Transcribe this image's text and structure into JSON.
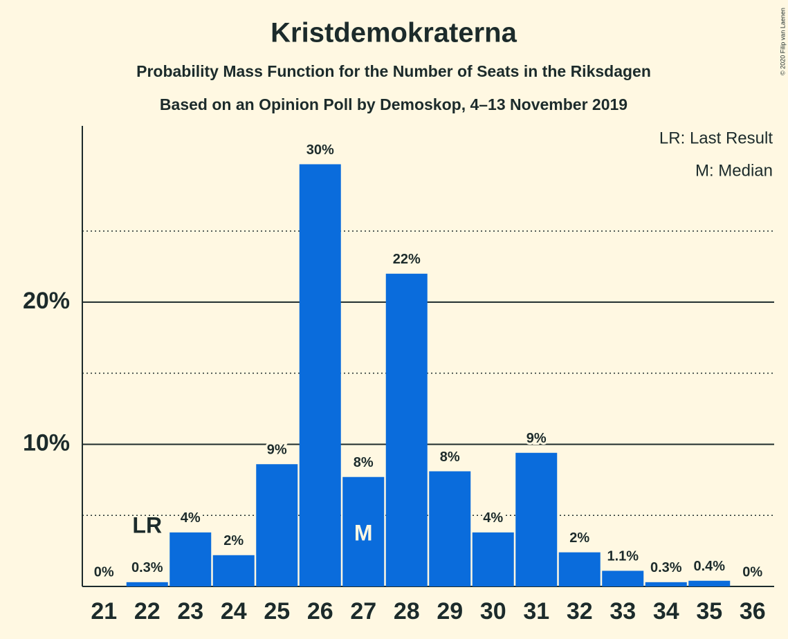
{
  "chart_data": {
    "type": "bar",
    "title": "Kristdemokraterna",
    "subtitle": "Probability Mass Function for the Number of Seats in the Riksdagen",
    "subtitle2": "Based on an Opinion Poll by Demoskop, 4–13 November 2019",
    "categories": [
      21,
      22,
      23,
      24,
      25,
      26,
      27,
      28,
      29,
      30,
      31,
      32,
      33,
      34,
      35,
      36
    ],
    "values": [
      0,
      0.3,
      3.8,
      2.2,
      8.6,
      29.7,
      7.7,
      22.0,
      8.1,
      3.8,
      9.4,
      2.4,
      1.1,
      0.3,
      0.4,
      0
    ],
    "value_labels": [
      "0%",
      "0.3%",
      "4%",
      "2%",
      "9%",
      "30%",
      "8%",
      "22%",
      "8%",
      "4%",
      "9%",
      "2%",
      "1.1%",
      "0.3%",
      "0.4%",
      "0%"
    ],
    "color": "#0a6cdc",
    "ylim": [
      0,
      32.4
    ],
    "yticks": [
      {
        "value": 10,
        "label": "10%"
      },
      {
        "value": 20,
        "label": "20%"
      }
    ],
    "minor_gridlines": [
      5,
      15,
      25
    ],
    "last_result": {
      "label": "LR",
      "category": 22
    },
    "median": {
      "label": "M",
      "category": 27
    },
    "legend": [
      "LR: Last Result",
      "M: Median"
    ],
    "copyright": "© 2020 Filip van Laenen"
  }
}
